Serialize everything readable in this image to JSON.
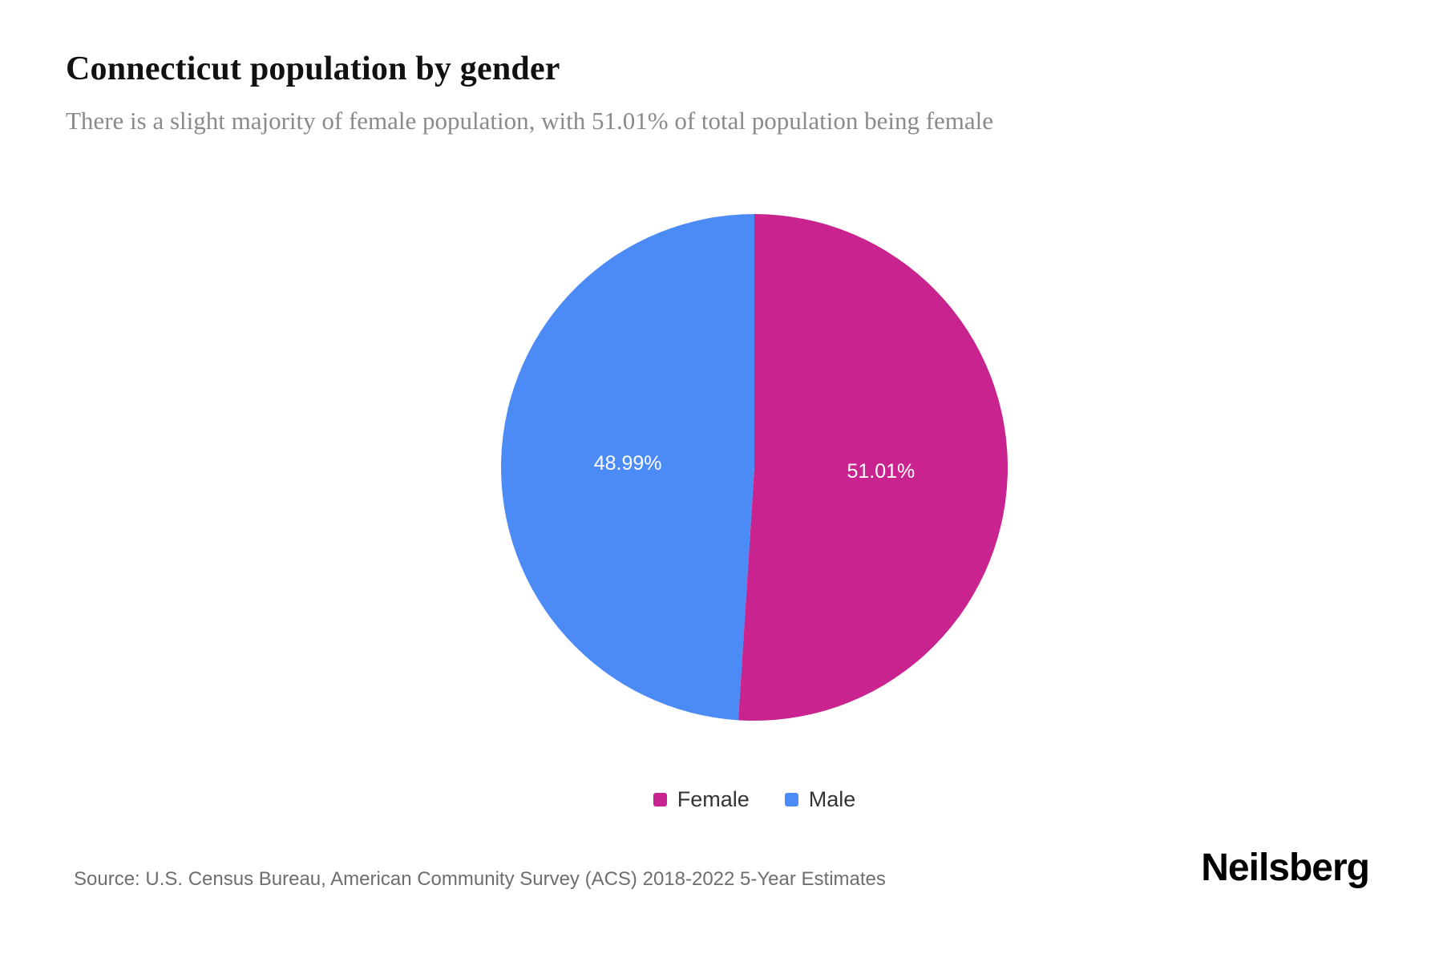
{
  "header": {
    "title": "Connecticut population by gender",
    "subtitle": "There is a slight majority of female population, with 51.01% of total population being female"
  },
  "chart_data": {
    "type": "pie",
    "title": "Connecticut population by gender",
    "categories": [
      "Female",
      "Male"
    ],
    "values": [
      51.01,
      48.99
    ],
    "slice_labels": [
      "51.01%",
      "48.99%"
    ],
    "colors": [
      "#C9238F",
      "#4C8BF5"
    ],
    "start_angle_deg": -90,
    "direction": "clockwise",
    "legend_position": "bottom",
    "label_color": "#ffffff"
  },
  "legend": {
    "items": [
      {
        "label": "Female",
        "color": "#C9238F"
      },
      {
        "label": "Male",
        "color": "#4C8BF5"
      }
    ]
  },
  "footer": {
    "source": "Source: U.S. Census Bureau, American Community Survey (ACS) 2018-2022 5-Year Estimates",
    "brand": "Neilsberg"
  }
}
